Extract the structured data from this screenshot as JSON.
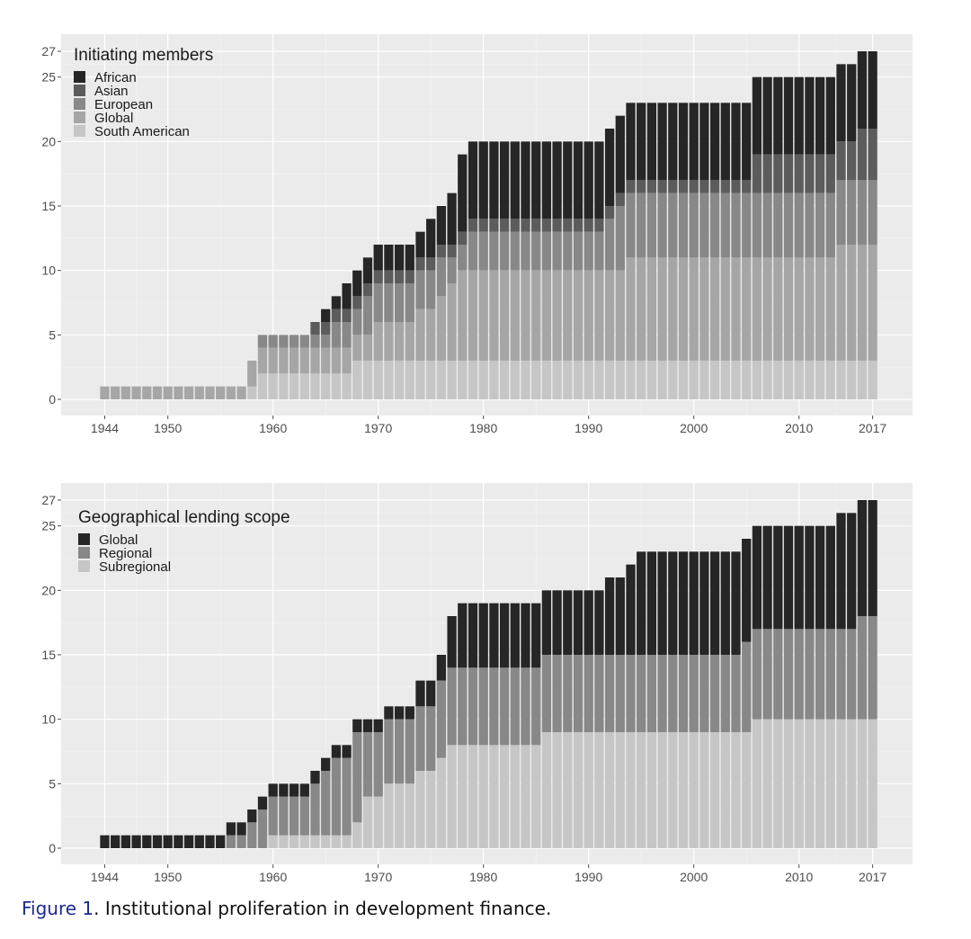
{
  "figure": {
    "label": "Figure 1",
    "text": ". Institutional proliferation in development finance."
  },
  "chart_data": [
    {
      "type": "bar",
      "stacked": true,
      "legend_title": "Initiating members",
      "legend_position": "top-left",
      "grid": true,
      "xlim": [
        1944,
        2017
      ],
      "x_ticks": [
        "1944",
        "1950",
        "1960",
        "1970",
        "1980",
        "1990",
        "2000",
        "2010",
        "2017"
      ],
      "ylim": [
        0,
        27
      ],
      "y_ticks": [
        "0",
        "5",
        "10",
        "15",
        "20",
        "25",
        "27"
      ],
      "series": [
        {
          "name": "South American",
          "color": "#c6c6c6",
          "values": [
            0,
            0,
            0,
            0,
            0,
            0,
            0,
            0,
            0,
            0,
            0,
            0,
            0,
            0,
            1,
            2,
            2,
            2,
            2,
            2,
            2,
            2,
            2,
            2,
            3,
            3,
            3,
            3,
            3,
            3,
            3,
            3,
            3,
            3,
            3,
            3,
            3,
            3,
            3,
            3,
            3,
            3,
            3,
            3,
            3,
            3,
            3,
            3,
            3,
            3,
            3,
            3,
            3,
            3,
            3,
            3,
            3,
            3,
            3,
            3,
            3,
            3,
            3,
            3,
            3,
            3,
            3,
            3,
            3,
            3,
            3,
            3,
            3,
            3
          ]
        },
        {
          "name": "Global",
          "color": "#a6a6a6",
          "values": [
            1,
            1,
            1,
            1,
            1,
            1,
            1,
            1,
            1,
            1,
            1,
            1,
            1,
            1,
            2,
            2,
            2,
            2,
            2,
            2,
            2,
            2,
            2,
            2,
            2,
            2,
            3,
            3,
            3,
            3,
            4,
            4,
            5,
            6,
            7,
            7,
            7,
            7,
            7,
            7,
            7,
            7,
            7,
            7,
            7,
            7,
            7,
            7,
            7,
            7,
            8,
            8,
            8,
            8,
            8,
            8,
            8,
            8,
            8,
            8,
            8,
            8,
            8,
            8,
            8,
            8,
            8,
            8,
            8,
            8,
            9,
            9,
            9,
            9
          ]
        },
        {
          "name": "European",
          "color": "#888888",
          "values": [
            0,
            0,
            0,
            0,
            0,
            0,
            0,
            0,
            0,
            0,
            0,
            0,
            0,
            0,
            0,
            1,
            1,
            1,
            1,
            1,
            1,
            1,
            2,
            2,
            2,
            3,
            3,
            3,
            3,
            3,
            3,
            3,
            3,
            2,
            2,
            3,
            3,
            3,
            3,
            3,
            3,
            3,
            3,
            3,
            3,
            3,
            3,
            3,
            4,
            5,
            5,
            5,
            5,
            5,
            5,
            5,
            5,
            5,
            5,
            5,
            5,
            5,
            5,
            5,
            5,
            5,
            5,
            5,
            5,
            5,
            5,
            5,
            5,
            5
          ]
        },
        {
          "name": "Asian",
          "color": "#5c5c5c",
          "values": [
            0,
            0,
            0,
            0,
            0,
            0,
            0,
            0,
            0,
            0,
            0,
            0,
            0,
            0,
            0,
            0,
            0,
            0,
            0,
            0,
            1,
            1,
            1,
            1,
            1,
            1,
            1,
            1,
            1,
            1,
            1,
            1,
            1,
            1,
            1,
            1,
            1,
            1,
            1,
            1,
            1,
            1,
            1,
            1,
            1,
            1,
            1,
            1,
            1,
            1,
            1,
            1,
            1,
            1,
            1,
            1,
            1,
            1,
            1,
            1,
            1,
            1,
            3,
            3,
            3,
            3,
            3,
            3,
            3,
            3,
            3,
            3,
            4,
            4
          ]
        },
        {
          "name": "African",
          "color": "#262626",
          "values": [
            0,
            0,
            0,
            0,
            0,
            0,
            0,
            0,
            0,
            0,
            0,
            0,
            0,
            0,
            0,
            0,
            0,
            0,
            0,
            0,
            0,
            1,
            1,
            2,
            2,
            2,
            2,
            2,
            2,
            2,
            2,
            3,
            3,
            4,
            6,
            6,
            6,
            6,
            6,
            6,
            6,
            6,
            6,
            6,
            6,
            6,
            6,
            6,
            6,
            6,
            6,
            6,
            6,
            6,
            6,
            6,
            6,
            6,
            6,
            6,
            6,
            6,
            6,
            6,
            6,
            6,
            6,
            6,
            6,
            6,
            6,
            6,
            6,
            6
          ]
        }
      ]
    },
    {
      "type": "bar",
      "stacked": true,
      "legend_title": "Geographical lending scope",
      "legend_position": "top-left",
      "grid": true,
      "xlim": [
        1944,
        2017
      ],
      "x_ticks": [
        "1944",
        "1950",
        "1960",
        "1970",
        "1980",
        "1990",
        "2000",
        "2010",
        "2017"
      ],
      "ylim": [
        0,
        27
      ],
      "y_ticks": [
        "0",
        "5",
        "10",
        "15",
        "20",
        "25",
        "27"
      ],
      "series": [
        {
          "name": "Subregional",
          "color": "#c6c6c6",
          "values": [
            0,
            0,
            0,
            0,
            0,
            0,
            0,
            0,
            0,
            0,
            0,
            0,
            0,
            0,
            0,
            0,
            1,
            1,
            1,
            1,
            1,
            1,
            1,
            1,
            2,
            4,
            4,
            5,
            5,
            5,
            6,
            6,
            7,
            8,
            8,
            8,
            8,
            8,
            8,
            8,
            8,
            8,
            9,
            9,
            9,
            9,
            9,
            9,
            9,
            9,
            9,
            9,
            9,
            9,
            9,
            9,
            9,
            9,
            9,
            9,
            9,
            9,
            10,
            10,
            10,
            10,
            10,
            10,
            10,
            10,
            10,
            10,
            10,
            10
          ]
        },
        {
          "name": "Regional",
          "color": "#888888",
          "values": [
            0,
            0,
            0,
            0,
            0,
            0,
            0,
            0,
            0,
            0,
            0,
            0,
            1,
            1,
            2,
            3,
            3,
            3,
            3,
            3,
            4,
            5,
            6,
            6,
            7,
            5,
            5,
            5,
            5,
            5,
            5,
            5,
            6,
            6,
            6,
            6,
            6,
            6,
            6,
            6,
            6,
            6,
            6,
            6,
            6,
            6,
            6,
            6,
            6,
            6,
            6,
            6,
            6,
            6,
            6,
            6,
            6,
            6,
            6,
            6,
            6,
            7,
            7,
            7,
            7,
            7,
            7,
            7,
            7,
            7,
            7,
            7,
            8,
            8
          ]
        },
        {
          "name": "Global",
          "color": "#262626",
          "values": [
            1,
            1,
            1,
            1,
            1,
            1,
            1,
            1,
            1,
            1,
            1,
            1,
            1,
            1,
            1,
            1,
            1,
            1,
            1,
            1,
            1,
            1,
            1,
            1,
            1,
            1,
            1,
            1,
            1,
            1,
            2,
            2,
            2,
            4,
            5,
            5,
            5,
            5,
            5,
            5,
            5,
            5,
            5,
            5,
            5,
            5,
            5,
            5,
            6,
            6,
            7,
            8,
            8,
            8,
            8,
            8,
            8,
            8,
            8,
            8,
            8,
            8,
            8,
            8,
            8,
            8,
            8,
            8,
            8,
            8,
            9,
            9,
            9,
            9
          ]
        }
      ]
    }
  ]
}
